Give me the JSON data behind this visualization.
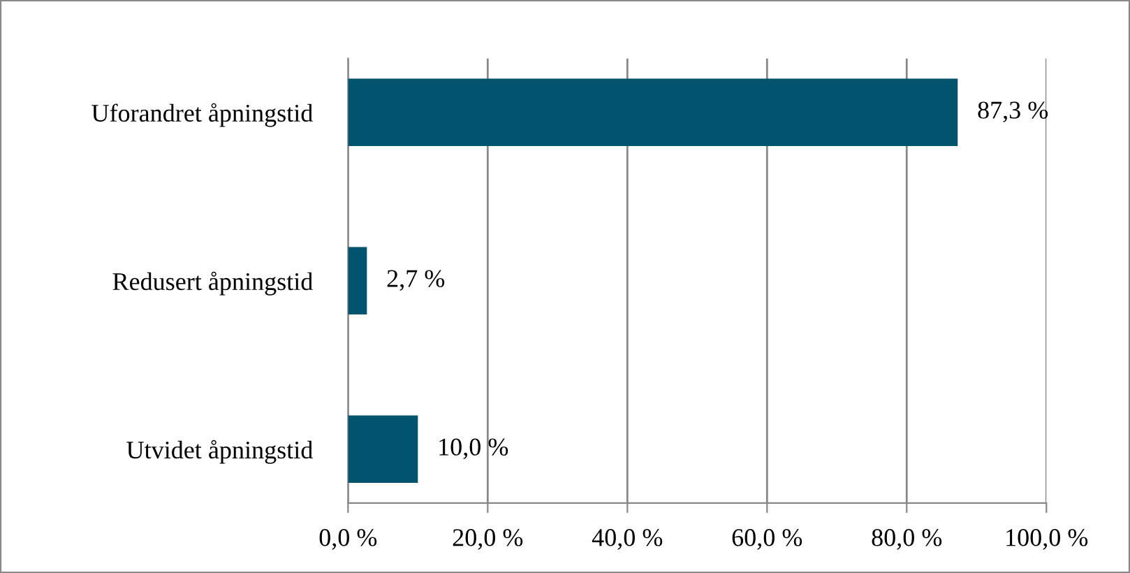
{
  "chart_data": {
    "type": "bar",
    "orientation": "horizontal",
    "categories": [
      "Uforandret åpningstid",
      "Redusert åpningstid",
      "Utvidet åpningstid"
    ],
    "values": [
      87.3,
      2.7,
      10.0
    ],
    "color": "#02536d",
    "value_labels": [
      "87,3 %",
      "2,7 %",
      "10,0 %"
    ],
    "xlim": [
      0,
      100
    ],
    "xticks": [
      {
        "value": 0,
        "label": "0,0 %"
      },
      {
        "value": 20,
        "label": "20,0 %"
      },
      {
        "value": 40,
        "label": "40,0 %"
      },
      {
        "value": 60,
        "label": "60,0 %"
      },
      {
        "value": 80,
        "label": "80,0 %"
      },
      {
        "value": 100,
        "label": "100,0 %"
      }
    ],
    "grid": "x",
    "legend": false
  }
}
